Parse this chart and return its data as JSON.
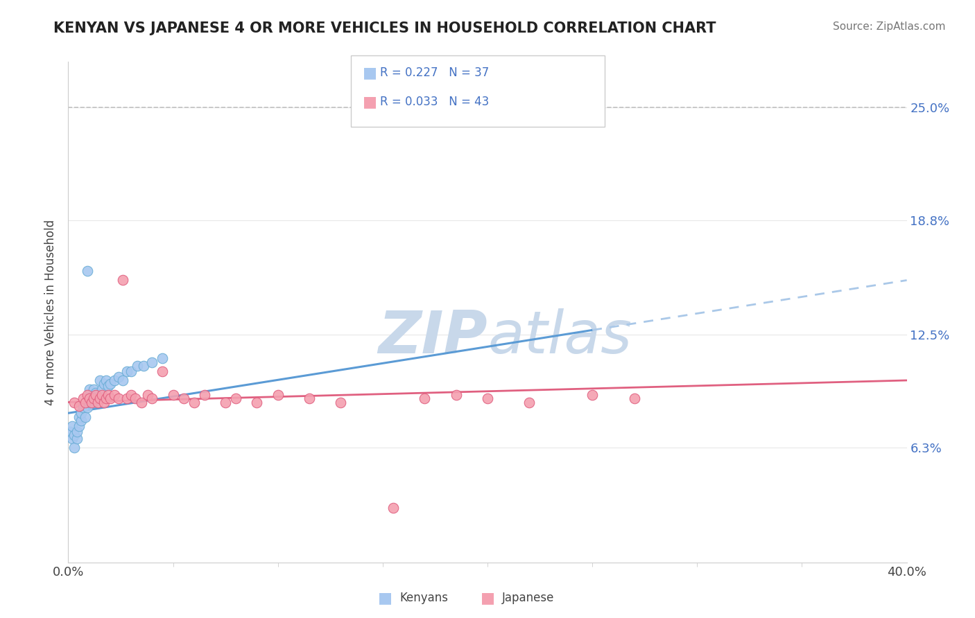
{
  "title": "KENYAN VS JAPANESE 4 OR MORE VEHICLES IN HOUSEHOLD CORRELATION CHART",
  "source_text": "Source: ZipAtlas.com",
  "ylabel": "4 or more Vehicles in Household",
  "xlim": [
    0.0,
    0.4
  ],
  "ylim": [
    0.0,
    0.275
  ],
  "ytick_positions": [
    0.063,
    0.125,
    0.188,
    0.25
  ],
  "ytick_labels": [
    "6.3%",
    "12.5%",
    "18.8%",
    "25.0%"
  ],
  "legend_r_kenyan": "R = 0.227",
  "legend_n_kenyan": "N = 37",
  "legend_r_japanese": "R = 0.033",
  "legend_n_japanese": "N = 43",
  "kenyan_color": "#a8c8f0",
  "kenyan_edge": "#6baed6",
  "japanese_color": "#f4a0b0",
  "japanese_edge": "#e06080",
  "trendline_kenyan_color": "#5b9bd5",
  "trendline_japanese_color": "#e06080",
  "trendline_kenyan_dash_color": "#aac8e8",
  "watermark_color": "#c8d8ea",
  "dashed_line_y": 0.25,
  "dashed_line_color": "#bbbbbb",
  "kenyan_x": [
    0.001,
    0.002,
    0.002,
    0.003,
    0.003,
    0.004,
    0.004,
    0.005,
    0.005,
    0.006,
    0.006,
    0.007,
    0.008,
    0.009,
    0.009,
    0.01,
    0.01,
    0.011,
    0.012,
    0.012,
    0.013,
    0.014,
    0.015,
    0.016,
    0.017,
    0.018,
    0.019,
    0.02,
    0.022,
    0.024,
    0.026,
    0.028,
    0.03,
    0.033,
    0.036,
    0.04,
    0.045
  ],
  "kenyan_y": [
    0.072,
    0.068,
    0.075,
    0.063,
    0.07,
    0.068,
    0.072,
    0.075,
    0.08,
    0.078,
    0.082,
    0.085,
    0.08,
    0.085,
    0.16,
    0.088,
    0.095,
    0.09,
    0.088,
    0.095,
    0.093,
    0.092,
    0.1,
    0.095,
    0.098,
    0.1,
    0.097,
    0.098,
    0.1,
    0.102,
    0.1,
    0.105,
    0.105,
    0.108,
    0.108,
    0.11,
    0.112
  ],
  "japanese_x": [
    0.003,
    0.005,
    0.007,
    0.008,
    0.009,
    0.01,
    0.011,
    0.012,
    0.013,
    0.014,
    0.015,
    0.016,
    0.017,
    0.018,
    0.019,
    0.02,
    0.022,
    0.024,
    0.026,
    0.028,
    0.03,
    0.032,
    0.035,
    0.038,
    0.04,
    0.045,
    0.05,
    0.055,
    0.06,
    0.065,
    0.075,
    0.08,
    0.09,
    0.1,
    0.115,
    0.13,
    0.155,
    0.17,
    0.185,
    0.2,
    0.22,
    0.25,
    0.27
  ],
  "japanese_y": [
    0.088,
    0.086,
    0.09,
    0.088,
    0.092,
    0.09,
    0.088,
    0.09,
    0.092,
    0.088,
    0.09,
    0.092,
    0.088,
    0.09,
    0.092,
    0.09,
    0.092,
    0.09,
    0.155,
    0.09,
    0.092,
    0.09,
    0.088,
    0.092,
    0.09,
    0.105,
    0.092,
    0.09,
    0.088,
    0.092,
    0.088,
    0.09,
    0.088,
    0.092,
    0.09,
    0.088,
    0.03,
    0.09,
    0.092,
    0.09,
    0.088,
    0.092,
    0.09
  ],
  "trendline_k_x0": 0.0,
  "trendline_k_y0": 0.082,
  "trendline_k_x1": 0.4,
  "trendline_k_y1": 0.155,
  "trendline_k_solid_end": 0.25,
  "trendline_j_x0": 0.0,
  "trendline_j_y0": 0.088,
  "trendline_j_x1": 0.4,
  "trendline_j_y1": 0.1
}
